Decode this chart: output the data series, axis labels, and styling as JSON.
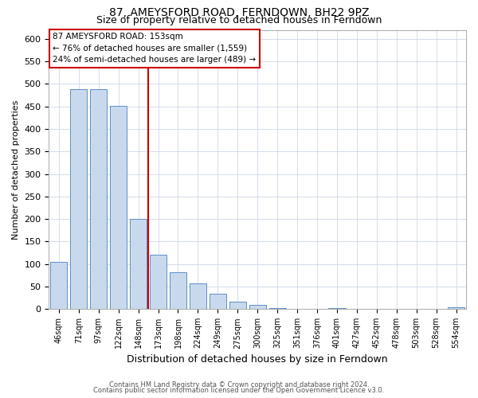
{
  "title": "87, AMEYSFORD ROAD, FERNDOWN, BH22 9PZ",
  "subtitle": "Size of property relative to detached houses in Ferndown",
  "xlabel": "Distribution of detached houses by size in Ferndown",
  "ylabel": "Number of detached properties",
  "bar_labels": [
    "46sqm",
    "71sqm",
    "97sqm",
    "122sqm",
    "148sqm",
    "173sqm",
    "198sqm",
    "224sqm",
    "249sqm",
    "275sqm",
    "300sqm",
    "325sqm",
    "351sqm",
    "376sqm",
    "401sqm",
    "427sqm",
    "452sqm",
    "478sqm",
    "503sqm",
    "528sqm",
    "554sqm"
  ],
  "bar_values": [
    105,
    488,
    488,
    452,
    200,
    120,
    82,
    57,
    35,
    16,
    10,
    3,
    0,
    0,
    3,
    0,
    0,
    0,
    0,
    0,
    5
  ],
  "bar_color": "#c9d9ed",
  "bar_edge_color": "#5b8fc9",
  "vline_color": "#cc0000",
  "vline_pos": 4.5,
  "annotation_title": "87 AMEYSFORD ROAD: 153sqm",
  "annotation_line1": "← 76% of detached houses are smaller (1,559)",
  "annotation_line2": "24% of semi-detached houses are larger (489) →",
  "annotation_box_color": "#cc0000",
  "ylim": [
    0,
    620
  ],
  "yticks": [
    0,
    50,
    100,
    150,
    200,
    250,
    300,
    350,
    400,
    450,
    500,
    550,
    600
  ],
  "footer1": "Contains HM Land Registry data © Crown copyright and database right 2024.",
  "footer2": "Contains public sector information licensed under the Open Government Licence v3.0.",
  "background_color": "#ffffff",
  "grid_color": "#cdd8e8",
  "title_fontsize": 10,
  "subtitle_fontsize": 9,
  "ylabel_fontsize": 8,
  "xlabel_fontsize": 9
}
